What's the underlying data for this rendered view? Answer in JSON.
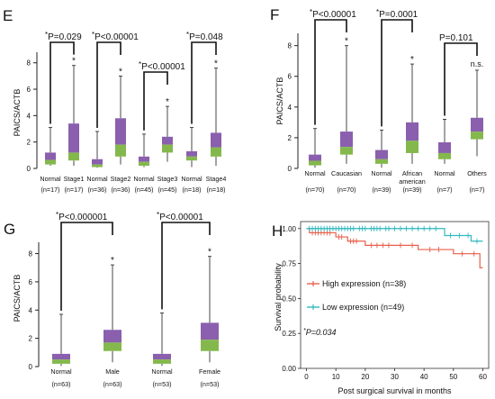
{
  "colors": {
    "upper_box": "#8a5fae",
    "lower_box": "#84b84c",
    "high_line": "#e8604c",
    "low_line": "#32b8bf",
    "axis": "#222222"
  },
  "chart_data": [
    {
      "type": "box",
      "panel": "E",
      "ylabel": "PAICS/ACTB",
      "ylim": [
        0,
        8.8
      ],
      "yticks": [
        0,
        2,
        4,
        6,
        8
      ],
      "categories": [
        "Normal",
        "Stage1",
        "Normal",
        "Stage2",
        "Normal",
        "Stage3",
        "Normal",
        "Stage4"
      ],
      "counts": [
        "(n=17)",
        "(n=17)",
        "(n=36)",
        "(n=36)",
        "(n=45)",
        "(n=45)",
        "(n=18)",
        "(n=18)"
      ],
      "boxes": [
        {
          "min": 0.2,
          "q1": 0.3,
          "median": 0.65,
          "q3": 1.2,
          "max": 3.1,
          "star": false
        },
        {
          "min": 0.2,
          "q1": 0.6,
          "median": 1.2,
          "q3": 3.4,
          "max": 7.8,
          "star": true
        },
        {
          "min": 0.05,
          "q1": 0.1,
          "median": 0.3,
          "q3": 0.7,
          "max": 2.8,
          "star": false
        },
        {
          "min": 0.3,
          "q1": 0.9,
          "median": 1.8,
          "q3": 3.8,
          "max": 7.0,
          "star": true
        },
        {
          "min": 0.1,
          "q1": 0.2,
          "median": 0.5,
          "q3": 0.9,
          "max": 2.6,
          "star": false
        },
        {
          "min": 0.5,
          "q1": 1.2,
          "median": 1.8,
          "q3": 2.4,
          "max": 4.7,
          "star": true
        },
        {
          "min": 0.1,
          "q1": 0.6,
          "median": 0.9,
          "q3": 1.3,
          "max": 3.1,
          "star": false
        },
        {
          "min": 0.2,
          "q1": 0.9,
          "median": 1.6,
          "q3": 2.7,
          "max": 7.6,
          "star": true
        }
      ],
      "comparisons": [
        {
          "groups": [
            0,
            1
          ],
          "p_star": "*",
          "p_text": "P=0.029"
        },
        {
          "groups": [
            2,
            3
          ],
          "p_star": "*",
          "p_text": "P<0.00001"
        },
        {
          "groups": [
            4,
            5
          ],
          "p_star": "*",
          "p_text": "P<0.00001"
        },
        {
          "groups": [
            6,
            7
          ],
          "p_star": "*",
          "p_text": "P=0.048"
        }
      ]
    },
    {
      "type": "box",
      "panel": "F",
      "ylabel": "PAICS/ACTB",
      "ylim": [
        0,
        8.8
      ],
      "yticks": [
        0,
        2,
        4,
        6,
        8
      ],
      "categories": [
        "Normal",
        "Caucasian",
        "Normal",
        "African american",
        "Normal",
        "Others"
      ],
      "counts": [
        "(n=70)",
        "(n=70)",
        "(n=39)",
        "(n=39)",
        "(n=7)",
        "(n=7)"
      ],
      "boxes": [
        {
          "min": 0.05,
          "q1": 0.2,
          "median": 0.5,
          "q3": 0.9,
          "max": 2.6,
          "star": false
        },
        {
          "min": 0.3,
          "q1": 0.9,
          "median": 1.4,
          "q3": 2.4,
          "max": 8.0,
          "star": true
        },
        {
          "min": 0.05,
          "q1": 0.3,
          "median": 0.6,
          "q3": 1.2,
          "max": 2.5,
          "star": false
        },
        {
          "min": 0.3,
          "q1": 1.0,
          "median": 1.8,
          "q3": 3.0,
          "max": 6.8,
          "star": true
        },
        {
          "min": 0.3,
          "q1": 0.6,
          "median": 1.0,
          "q3": 1.7,
          "max": 3.2,
          "star": false
        },
        {
          "min": 0.8,
          "q1": 1.9,
          "median": 2.4,
          "q3": 3.3,
          "max": 6.4,
          "star": false
        }
      ],
      "comparisons": [
        {
          "groups": [
            0,
            1
          ],
          "p_star": "*",
          "p_text": "P<0.00001"
        },
        {
          "groups": [
            2,
            3
          ],
          "p_star": "*",
          "p_text": "P=0.0001"
        },
        {
          "groups": [
            4,
            5
          ],
          "p_star": "",
          "p_text": "P=0.101"
        }
      ],
      "annotations": [
        {
          "text": "n.s.",
          "group": 5
        }
      ]
    },
    {
      "type": "box",
      "panel": "G",
      "ylabel": "PAICS/ACTB",
      "ylim": [
        0,
        8.8
      ],
      "yticks": [
        0,
        2,
        4,
        6,
        8
      ],
      "categories": [
        "Normal",
        "Male",
        "Normal",
        "Female"
      ],
      "counts": [
        "(n=63)",
        "(n=63)",
        "(n=53)",
        "(n=53)"
      ],
      "boxes": [
        {
          "min": 0.05,
          "q1": 0.2,
          "median": 0.5,
          "q3": 0.9,
          "max": 3.7,
          "star": false
        },
        {
          "min": 0.3,
          "q1": 1.1,
          "median": 1.7,
          "q3": 2.6,
          "max": 7.2,
          "star": true
        },
        {
          "min": 0.05,
          "q1": 0.2,
          "median": 0.5,
          "q3": 0.9,
          "max": 3.8,
          "star": false
        },
        {
          "min": 0.3,
          "q1": 1.1,
          "median": 1.9,
          "q3": 3.1,
          "max": 7.8,
          "star": true
        }
      ],
      "comparisons": [
        {
          "groups": [
            0,
            1
          ],
          "p_star": "*",
          "p_text": "P<0.000001"
        },
        {
          "groups": [
            2,
            3
          ],
          "p_star": "*",
          "p_text": "P<0.00001"
        }
      ]
    },
    {
      "type": "line",
      "subtype": "kaplan-meier",
      "panel": "H",
      "xlabel": "Post surgical survival in months",
      "ylabel": "Survival probability",
      "xlim": [
        -2,
        62
      ],
      "ylim": [
        0,
        1.05
      ],
      "xticks": [
        0,
        10,
        20,
        30,
        40,
        50,
        60
      ],
      "yticks": [
        0.0,
        0.25,
        0.5,
        0.75,
        1.0
      ],
      "ytick_labels": [
        "0.00",
        "0.25",
        "0.50",
        "0.75",
        "1.00"
      ],
      "series": [
        {
          "name": "High expression (n=38)",
          "color": "#e8604c",
          "steps": [
            [
              0,
              1.0
            ],
            [
              1,
              0.97
            ],
            [
              10,
              0.94
            ],
            [
              14,
              0.91
            ],
            [
              20,
              0.88
            ],
            [
              38,
              0.85
            ],
            [
              50,
              0.82
            ],
            [
              59,
              0.72
            ],
            [
              60,
              0.72
            ]
          ],
          "censor": [
            2,
            3,
            4,
            5,
            6,
            7,
            8,
            11,
            12,
            15,
            16,
            17,
            22,
            24,
            26,
            28,
            32,
            36,
            42,
            45,
            53,
            57
          ]
        },
        {
          "name": "Low expression (n=49)",
          "color": "#32b8bf",
          "steps": [
            [
              0,
              1.0
            ],
            [
              47,
              0.95
            ],
            [
              56,
              0.91
            ],
            [
              60,
              0.91
            ]
          ],
          "censor": [
            1,
            2,
            3,
            4,
            5,
            6,
            7,
            8,
            9,
            10,
            11,
            12,
            13,
            14,
            15,
            16,
            18,
            19,
            20,
            22,
            23,
            24,
            25,
            27,
            28,
            30,
            32,
            34,
            36,
            38,
            40,
            42,
            44,
            49,
            52,
            55,
            58
          ]
        }
      ],
      "p_star": "*",
      "p_text": "P=0.034"
    }
  ]
}
